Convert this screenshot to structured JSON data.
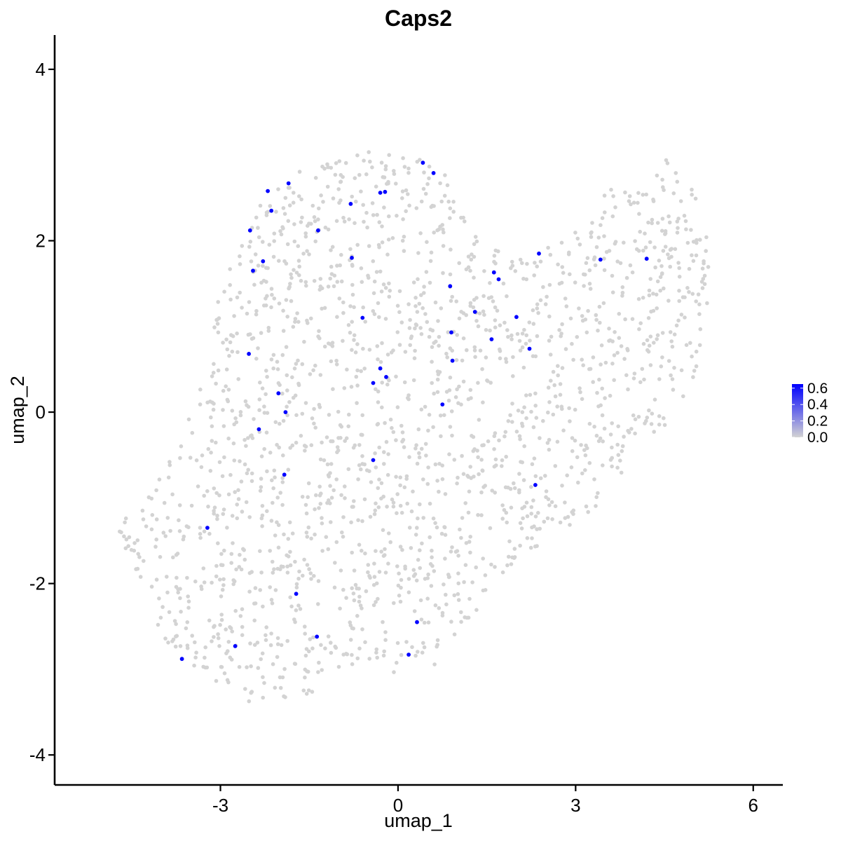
{
  "chart_data": {
    "type": "scatter",
    "title": "Caps2",
    "xlabel": "umap_1",
    "ylabel": "umap_2",
    "xlim": [
      -5.8,
      6.5
    ],
    "ylim": [
      -4.35,
      4.4
    ],
    "x_ticks": [
      -3,
      0,
      3,
      6
    ],
    "x_tick_labels": [
      "-3",
      "0",
      "3",
      "6"
    ],
    "y_ticks": [
      -4,
      -2,
      0,
      2,
      4
    ],
    "y_tick_labels": [
      "-4",
      "-2",
      "0",
      "2",
      "4"
    ],
    "grid": false,
    "legend": {
      "placement": "right",
      "type": "colorbar",
      "range": [
        0,
        0.65
      ],
      "labels": [
        "0.6",
        "0.4",
        "0.2",
        "0.0"
      ],
      "label_values": [
        0.6,
        0.4,
        0.2,
        0.0
      ],
      "low_color": "#d3d3d3",
      "high_color": "#0000ff"
    },
    "colors": {
      "background_points": "#d3d3d3",
      "expressing_points": "#0000ff"
    },
    "background_region": {
      "description_polygon_data_units": [
        [
          -4.75,
          -1.3
        ],
        [
          -4.3,
          -0.9
        ],
        [
          -3.7,
          -0.3
        ],
        [
          -3.2,
          0.6
        ],
        [
          -3.0,
          1.5
        ],
        [
          -2.6,
          2.1
        ],
        [
          -2.2,
          2.6
        ],
        [
          -1.5,
          2.9
        ],
        [
          -0.8,
          3.05
        ],
        [
          0.2,
          3.1
        ],
        [
          0.8,
          2.8
        ],
        [
          1.2,
          2.2
        ],
        [
          1.8,
          1.9
        ],
        [
          2.6,
          1.95
        ],
        [
          3.2,
          2.4
        ],
        [
          3.6,
          2.6
        ],
        [
          4.1,
          2.6
        ],
        [
          4.6,
          3.0
        ],
        [
          5.0,
          2.6
        ],
        [
          5.35,
          2.0
        ],
        [
          5.3,
          1.2
        ],
        [
          5.0,
          0.4
        ],
        [
          4.6,
          -0.1
        ],
        [
          4.1,
          -0.4
        ],
        [
          3.6,
          -0.9
        ],
        [
          3.1,
          -1.3
        ],
        [
          2.5,
          -1.5
        ],
        [
          1.8,
          -1.9
        ],
        [
          1.0,
          -2.6
        ],
        [
          0.6,
          -3.0
        ],
        [
          0.0,
          -3.05
        ],
        [
          -0.6,
          -3.0
        ],
        [
          -1.2,
          -3.2
        ],
        [
          -2.1,
          -3.5
        ],
        [
          -2.8,
          -3.3
        ],
        [
          -3.5,
          -3.0
        ],
        [
          -4.0,
          -2.6
        ],
        [
          -4.3,
          -2.1
        ],
        [
          -4.6,
          -1.6
        ]
      ],
      "approx_point_count": 1900
    },
    "series": [
      {
        "name": "",
        "role": "expressing",
        "value": 0.6,
        "points": [
          [
            0.42,
            2.91
          ],
          [
            0.6,
            2.79
          ],
          [
            -2.2,
            2.58
          ],
          [
            -1.85,
            2.67
          ],
          [
            -0.3,
            2.56
          ],
          [
            -0.22,
            2.57
          ],
          [
            -0.8,
            2.43
          ],
          [
            -2.14,
            2.35
          ],
          [
            -2.5,
            2.12
          ],
          [
            -1.35,
            2.12
          ],
          [
            -0.78,
            1.8
          ],
          [
            -2.28,
            1.76
          ],
          [
            -2.45,
            1.65
          ],
          [
            2.38,
            1.85
          ],
          [
            3.42,
            1.78
          ],
          [
            4.2,
            1.79
          ],
          [
            1.62,
            1.63
          ],
          [
            1.7,
            1.55
          ],
          [
            0.88,
            1.47
          ],
          [
            1.3,
            1.17
          ],
          [
            -0.6,
            1.1
          ],
          [
            2.0,
            1.11
          ],
          [
            0.9,
            0.93
          ],
          [
            1.58,
            0.85
          ],
          [
            2.22,
            0.74
          ],
          [
            -2.52,
            0.68
          ],
          [
            0.92,
            0.6
          ],
          [
            -0.3,
            0.51
          ],
          [
            -0.2,
            0.41
          ],
          [
            -0.42,
            0.34
          ],
          [
            -2.02,
            0.22
          ],
          [
            -1.9,
            0.0
          ],
          [
            0.75,
            0.09
          ],
          [
            -2.35,
            -0.2
          ],
          [
            -0.42,
            -0.56
          ],
          [
            -1.92,
            -0.73
          ],
          [
            2.32,
            -0.85
          ],
          [
            -3.22,
            -1.35
          ],
          [
            -1.72,
            -2.12
          ],
          [
            0.32,
            -2.45
          ],
          [
            -1.37,
            -2.62
          ],
          [
            -2.75,
            -2.73
          ],
          [
            0.18,
            -2.83
          ],
          [
            -3.65,
            -2.88
          ]
        ]
      }
    ]
  }
}
